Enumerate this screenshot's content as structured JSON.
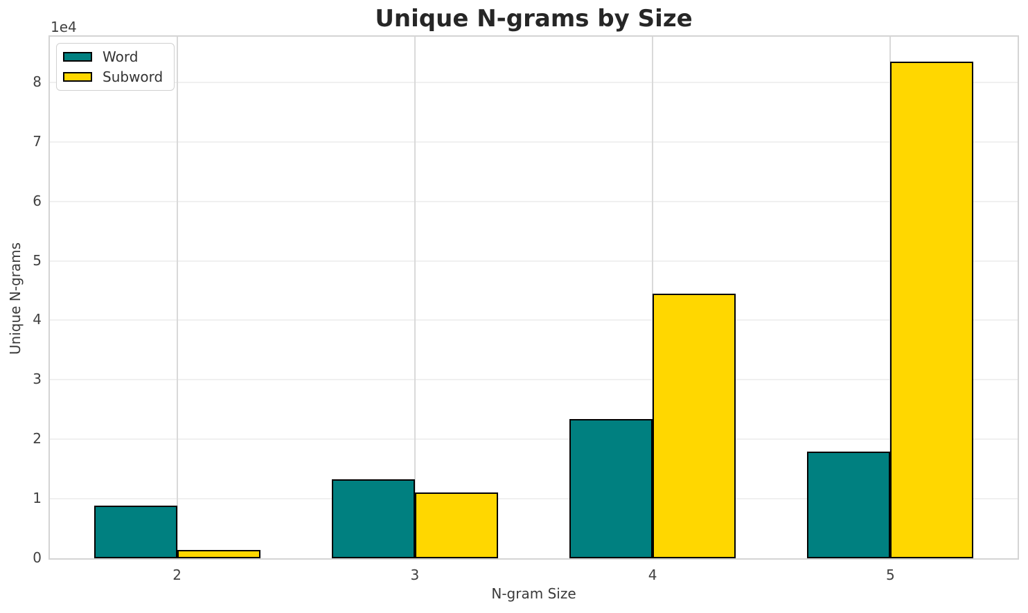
{
  "chart_data": {
    "type": "bar",
    "title": "Unique N-grams by Size",
    "xlabel": "N-gram Size",
    "ylabel": "Unique N-grams",
    "y_offset_label": "1e4",
    "categories": [
      2,
      3,
      4,
      5
    ],
    "x_tick_labels": [
      "2",
      "3",
      "4",
      "5"
    ],
    "series": [
      {
        "name": "Word",
        "color": "#008080",
        "values": [
          8800,
          13300,
          23400,
          17900
        ]
      },
      {
        "name": "Subword",
        "color": "#FFD700",
        "values": [
          1400,
          11100,
          44500,
          83500
        ]
      }
    ],
    "bar_width": 0.35,
    "bar_edge_color": "#000000",
    "xlim": [
      1.465,
      5.535
    ],
    "ylim": [
      0,
      87675
    ],
    "y_ticks": [
      0,
      10000,
      20000,
      30000,
      40000,
      50000,
      60000,
      70000,
      80000
    ],
    "y_tick_labels": [
      "0",
      "1",
      "2",
      "3",
      "4",
      "5",
      "6",
      "7",
      "8"
    ],
    "grid": true,
    "legend_position": "upper left",
    "background_color": "#ffffff",
    "grid_color_horizontal": "#f0f0f0",
    "grid_color_vertical": "#d9d9d9",
    "spine_color": "#d4d4d4"
  }
}
